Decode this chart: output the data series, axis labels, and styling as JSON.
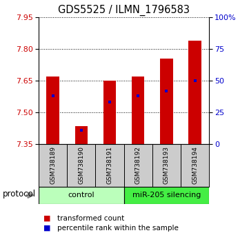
{
  "title": "GDS5525 / ILMN_1796583",
  "samples": [
    "GSM738189",
    "GSM738190",
    "GSM738191",
    "GSM738192",
    "GSM738193",
    "GSM738194"
  ],
  "bar_tops": [
    7.67,
    7.435,
    7.65,
    7.67,
    7.755,
    7.84
  ],
  "bar_bottom": 7.35,
  "percentile_values": [
    38,
    11,
    33,
    38,
    42,
    50
  ],
  "ylim_left": [
    7.35,
    7.95
  ],
  "ylim_right": [
    0,
    100
  ],
  "yticks_left": [
    7.35,
    7.5,
    7.65,
    7.8,
    7.95
  ],
  "yticks_right": [
    0,
    25,
    50,
    75,
    100
  ],
  "ytick_labels_right": [
    "0",
    "25",
    "50",
    "75",
    "100%"
  ],
  "bar_color": "#cc0000",
  "percentile_color": "#0000cc",
  "groups": [
    {
      "label": "control",
      "sample_indices": [
        0,
        1,
        2
      ],
      "color": "#bbffbb"
    },
    {
      "label": "miR-205 silencing",
      "sample_indices": [
        3,
        4,
        5
      ],
      "color": "#44ee44"
    }
  ],
  "protocol_label": "protocol",
  "legend_items": [
    {
      "color": "#cc0000",
      "label": "transformed count"
    },
    {
      "color": "#0000cc",
      "label": "percentile rank within the sample"
    }
  ],
  "tick_color_left": "#cc0000",
  "tick_color_right": "#0000cc",
  "title_fontsize": 10.5,
  "bar_width": 0.45
}
